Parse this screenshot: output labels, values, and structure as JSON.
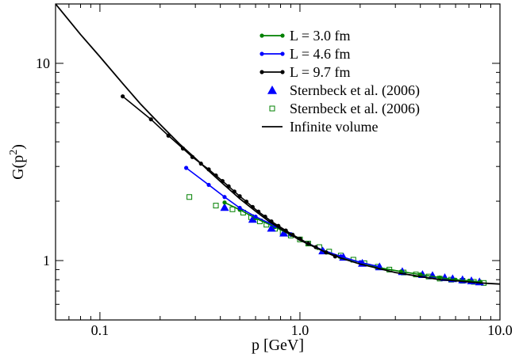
{
  "chart_data": {
    "type": "line",
    "xlabel": "p [GeV]",
    "ylabel": "G(p^2)",
    "ylabel_base": "G(p",
    "ylabel_sup": "2",
    "ylabel_tail": ")",
    "xscale": "log",
    "yscale": "log",
    "xlim": [
      0.06,
      10.0
    ],
    "ylim": [
      0.5,
      20
    ],
    "xticks": [
      {
        "value": 0.1,
        "label": "0.1"
      },
      {
        "value": 1.0,
        "label": "1.0"
      },
      {
        "value": 10.0,
        "label": "10.0"
      }
    ],
    "yticks": [
      {
        "value": 1,
        "label": "1"
      },
      {
        "value": 10,
        "label": "10"
      }
    ],
    "grid": false,
    "legend_position": "top-right",
    "series": [
      {
        "name": "L = 3.0 fm",
        "color": "#008000",
        "style": "line-markers",
        "x": [
          0.42,
          0.5,
          0.6,
          0.75,
          0.9,
          1.1,
          1.3,
          1.6,
          2.0,
          2.5,
          3.2,
          4.0,
          5.0,
          6.0,
          7.0,
          8.0
        ],
        "y": [
          1.97,
          1.81,
          1.64,
          1.48,
          1.35,
          1.21,
          1.13,
          1.04,
          0.98,
          0.92,
          0.88,
          0.85,
          0.82,
          0.8,
          0.79,
          0.78
        ]
      },
      {
        "name": "L = 4.6 fm",
        "color": "#0000ff",
        "style": "line-markers",
        "x": [
          0.27,
          0.35,
          0.42,
          0.5,
          0.6,
          0.75,
          0.9,
          1.1,
          1.3,
          1.6,
          2.0,
          2.5
        ],
        "y": [
          2.95,
          2.42,
          2.1,
          1.85,
          1.67,
          1.5,
          1.36,
          1.22,
          1.13,
          1.05,
          0.98,
          0.93
        ]
      },
      {
        "name": "L = 9.7 fm",
        "color": "#000000",
        "style": "line-markers",
        "x": [
          0.13,
          0.18,
          0.22,
          0.26,
          0.29,
          0.32,
          0.35,
          0.38,
          0.41,
          0.44,
          0.47,
          0.5,
          0.54,
          0.58,
          0.62,
          0.67,
          0.72,
          0.78,
          0.85,
          0.92,
          1.0,
          1.1,
          1.2,
          1.35,
          1.5
        ],
        "y": [
          6.8,
          5.2,
          4.3,
          3.7,
          3.35,
          3.1,
          2.9,
          2.7,
          2.53,
          2.38,
          2.24,
          2.12,
          1.99,
          1.87,
          1.77,
          1.67,
          1.58,
          1.5,
          1.42,
          1.35,
          1.29,
          1.22,
          1.17,
          1.1,
          1.05
        ]
      },
      {
        "name": "Sternbeck et al. (2006)",
        "color": "#0000ff",
        "style": "triangle",
        "x": [
          0.42,
          0.58,
          0.72,
          0.83,
          1.3,
          1.65,
          2.05,
          2.5,
          3.25,
          4.1,
          4.6,
          5.3,
          5.8,
          6.5,
          7.2,
          7.9
        ],
        "y": [
          1.86,
          1.62,
          1.46,
          1.38,
          1.12,
          1.04,
          0.97,
          0.93,
          0.88,
          0.85,
          0.84,
          0.82,
          0.81,
          0.8,
          0.79,
          0.78
        ]
      },
      {
        "name": "Sternbeck et al. (2006)",
        "color": "#008000",
        "style": "open-square",
        "x": [
          0.28,
          0.38,
          0.46,
          0.52,
          0.57,
          0.63,
          0.68,
          0.75,
          0.82,
          0.9,
          1.0,
          1.1,
          1.25,
          1.4,
          1.6,
          1.85,
          2.1,
          2.45,
          2.8,
          3.3,
          3.8,
          4.4,
          5.0,
          5.7,
          6.5,
          7.4,
          8.3
        ],
        "y": [
          2.1,
          1.9,
          1.82,
          1.75,
          1.66,
          1.58,
          1.52,
          1.45,
          1.39,
          1.34,
          1.28,
          1.22,
          1.17,
          1.11,
          1.06,
          1.01,
          0.97,
          0.93,
          0.9,
          0.87,
          0.85,
          0.83,
          0.81,
          0.8,
          0.79,
          0.78,
          0.77
        ]
      },
      {
        "name": "Infinite volume",
        "color": "#000000",
        "style": "line",
        "x": [
          0.06,
          0.08,
          0.1,
          0.13,
          0.16,
          0.2,
          0.25,
          0.3,
          0.35,
          0.4,
          0.5,
          0.6,
          0.7,
          0.8,
          1.0,
          1.3,
          1.6,
          2.0,
          2.5,
          3.0,
          4.0,
          5.0,
          6.0,
          8.0,
          10.0
        ],
        "y": [
          20.0,
          14.0,
          10.8,
          7.9,
          6.2,
          4.9,
          3.9,
          3.3,
          2.85,
          2.52,
          2.06,
          1.78,
          1.58,
          1.45,
          1.27,
          1.12,
          1.03,
          0.96,
          0.91,
          0.87,
          0.83,
          0.8,
          0.79,
          0.77,
          0.76
        ]
      }
    ]
  }
}
